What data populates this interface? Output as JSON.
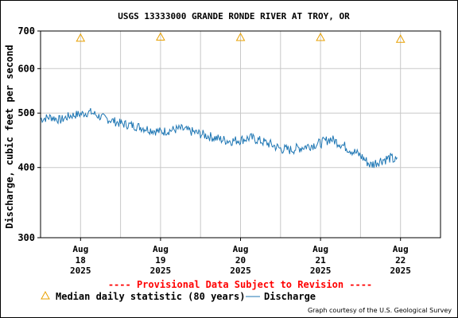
{
  "chart_data": {
    "type": "line",
    "title": "USGS 13333000 GRANDE RONDE RIVER AT TROY, OR",
    "ylabel": "Discharge, cubic feet per second",
    "xlabel": "",
    "y_scale": "log",
    "ylim": [
      300,
      700
    ],
    "y_ticks": [
      {
        "value": 300,
        "label": "300"
      },
      {
        "value": 400,
        "label": "400"
      },
      {
        "value": 500,
        "label": "500"
      },
      {
        "value": 600,
        "label": "600"
      },
      {
        "value": 700,
        "label": "700"
      }
    ],
    "xlim": [
      "2025-08-17T12:00",
      "2025-08-22T12:00"
    ],
    "x_ticks": [
      {
        "value": "2025-08-18T00:00",
        "month": "Aug",
        "day": "18",
        "year": "2025"
      },
      {
        "value": "2025-08-19T00:00",
        "month": "Aug",
        "day": "19",
        "year": "2025"
      },
      {
        "value": "2025-08-20T00:00",
        "month": "Aug",
        "day": "20",
        "year": "2025"
      },
      {
        "value": "2025-08-21T00:00",
        "month": "Aug",
        "day": "21",
        "year": "2025"
      },
      {
        "value": "2025-08-22T00:00",
        "month": "Aug",
        "day": "22",
        "year": "2025"
      }
    ],
    "grid": true,
    "series": [
      {
        "name": "Median daily statistic (80 years)",
        "marker": "triangle",
        "color": "#E8A000",
        "points": [
          {
            "x": "2025-08-18T00:00",
            "y": 680
          },
          {
            "x": "2025-08-19T00:00",
            "y": 683
          },
          {
            "x": "2025-08-20T00:00",
            "y": 682
          },
          {
            "x": "2025-08-21T00:00",
            "y": 682
          },
          {
            "x": "2025-08-22T00:00",
            "y": 677
          }
        ]
      },
      {
        "name": "Discharge",
        "color": "#1F77B4",
        "points": [
          {
            "x": "2025-08-17T12:00",
            "y": 488
          },
          {
            "x": "2025-08-17T15:00",
            "y": 492
          },
          {
            "x": "2025-08-17T18:00",
            "y": 486
          },
          {
            "x": "2025-08-17T21:00",
            "y": 495
          },
          {
            "x": "2025-08-18T00:00",
            "y": 498
          },
          {
            "x": "2025-08-18T03:00",
            "y": 502
          },
          {
            "x": "2025-08-18T06:00",
            "y": 492
          },
          {
            "x": "2025-08-18T09:00",
            "y": 486
          },
          {
            "x": "2025-08-18T12:00",
            "y": 479
          },
          {
            "x": "2025-08-18T15:00",
            "y": 476
          },
          {
            "x": "2025-08-18T18:00",
            "y": 472
          },
          {
            "x": "2025-08-18T21:00",
            "y": 467
          },
          {
            "x": "2025-08-19T00:00",
            "y": 463
          },
          {
            "x": "2025-08-19T03:00",
            "y": 466
          },
          {
            "x": "2025-08-19T06:00",
            "y": 469
          },
          {
            "x": "2025-08-19T09:00",
            "y": 464
          },
          {
            "x": "2025-08-19T12:00",
            "y": 459
          },
          {
            "x": "2025-08-19T15:00",
            "y": 454
          },
          {
            "x": "2025-08-19T18:00",
            "y": 449
          },
          {
            "x": "2025-08-19T21:00",
            "y": 446
          },
          {
            "x": "2025-08-20T00:00",
            "y": 448
          },
          {
            "x": "2025-08-20T03:00",
            "y": 452
          },
          {
            "x": "2025-08-20T06:00",
            "y": 446
          },
          {
            "x": "2025-08-20T09:00",
            "y": 440
          },
          {
            "x": "2025-08-20T12:00",
            "y": 432
          },
          {
            "x": "2025-08-20T15:00",
            "y": 430
          },
          {
            "x": "2025-08-20T18:00",
            "y": 434
          },
          {
            "x": "2025-08-20T21:00",
            "y": 438
          },
          {
            "x": "2025-08-21T00:00",
            "y": 442
          },
          {
            "x": "2025-08-21T03:00",
            "y": 450
          },
          {
            "x": "2025-08-21T06:00",
            "y": 441
          },
          {
            "x": "2025-08-21T09:00",
            "y": 430
          },
          {
            "x": "2025-08-21T12:00",
            "y": 420
          },
          {
            "x": "2025-08-21T15:00",
            "y": 404
          },
          {
            "x": "2025-08-21T18:00",
            "y": 412
          },
          {
            "x": "2025-08-21T21:00",
            "y": 416
          },
          {
            "x": "2025-08-21T23:00",
            "y": 410
          }
        ]
      }
    ],
    "banner": "---- Provisional Data Subject to Revision ----",
    "credit": "Graph courtesy of the U.S. Geological Survey"
  },
  "colors": {
    "title": "#000000",
    "banner": "#FF0000",
    "grid": "#C8C8C8",
    "discharge": "#1F77B4",
    "median": "#E8A000"
  }
}
